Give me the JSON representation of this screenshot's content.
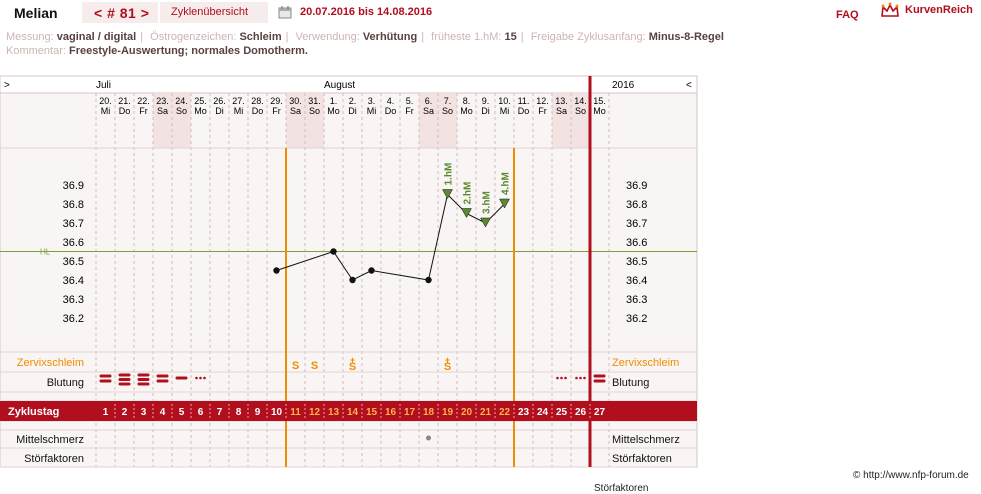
{
  "header": {
    "name": "Melian",
    "nav": "< # 81 >",
    "tab": "Zyklenübersicht",
    "date_range": "20.07.2016 bis 14.08.2016",
    "faq": "FAQ",
    "brand": "KurvenReich"
  },
  "meta": {
    "messung_label": "Messung:",
    "messung_value": "vaginal / digital",
    "oestrogen_label": "Östrogenzeichen:",
    "oestrogen_value": "Schleim",
    "verwendung_label": "Verwendung:",
    "verwendung_value": "Verhütung",
    "hm_label": "früheste 1.hM:",
    "hm_value": "15",
    "freigabe_label": "Freigabe Zyklusanfang:",
    "freigabe_value": "Minus-8-Regel",
    "kommentar_label": "Kommentar:",
    "kommentar_value": "Freestyle-Auswertung; normales Domotherm."
  },
  "chart_data": {
    "type": "line",
    "month_labels": {
      "july": "Juli",
      "august": "August",
      "year": "2016"
    },
    "nav_left": ">",
    "nav_right": "<",
    "dates": [
      "20.",
      "21.",
      "22.",
      "23.",
      "24.",
      "25.",
      "26.",
      "27.",
      "28.",
      "29.",
      "30.",
      "31.",
      "1.",
      "2.",
      "3.",
      "4.",
      "5.",
      "6.",
      "7.",
      "8.",
      "9.",
      "10.",
      "11.",
      "12.",
      "13.",
      "14.",
      "15."
    ],
    "weekdays": [
      "Mi",
      "Do",
      "Fr",
      "Sa",
      "So",
      "Mo",
      "Di",
      "Mi",
      "Do",
      "Fr",
      "Sa",
      "So",
      "Mo",
      "Di",
      "Mi",
      "Do",
      "Fr",
      "Sa",
      "So",
      "Mo",
      "Di",
      "Mi",
      "Do",
      "Fr",
      "Sa",
      "So",
      "Mo"
    ],
    "cycle_days": [
      1,
      2,
      3,
      4,
      5,
      6,
      7,
      8,
      9,
      10,
      11,
      12,
      13,
      14,
      15,
      16,
      17,
      18,
      19,
      20,
      21,
      22,
      23,
      24,
      25,
      26,
      27
    ],
    "y_ticks": [
      "36.9",
      "36.8",
      "36.7",
      "36.6",
      "36.5",
      "36.4",
      "36.3",
      "36.2"
    ],
    "ylim": [
      36.1,
      37.05
    ],
    "hl_label": "HL",
    "hl_value": 36.55,
    "temperatures": [
      {
        "day": 10,
        "value": 36.45
      },
      {
        "day": 13,
        "value": 36.55
      },
      {
        "day": 14,
        "value": 36.4
      },
      {
        "day": 15,
        "value": 36.45
      },
      {
        "day": 18,
        "value": 36.4
      },
      {
        "day": 19,
        "value": 36.85
      },
      {
        "day": 20,
        "value": 36.75
      },
      {
        "day": 21,
        "value": 36.7
      },
      {
        "day": 22,
        "value": 36.8
      }
    ],
    "hm_labels": [
      {
        "day": 19,
        "text": "1.hM"
      },
      {
        "day": 20,
        "text": "2.hM"
      },
      {
        "day": 21,
        "text": "3.hM"
      },
      {
        "day": 22,
        "text": "4.hM"
      }
    ],
    "orange_lines": [
      10,
      22
    ],
    "red_line_after": 26,
    "zervix_label": "Zervixschleim",
    "zervix": [
      {
        "day": 11,
        "text": "S"
      },
      {
        "day": 12,
        "text": "S"
      },
      {
        "day": 14,
        "text": "S+"
      },
      {
        "day": 19,
        "text": "S+"
      }
    ],
    "blutung_label": "Blutung",
    "blutung": [
      {
        "day": 1,
        "level": 2
      },
      {
        "day": 2,
        "level": 3
      },
      {
        "day": 3,
        "level": 3
      },
      {
        "day": 4,
        "level": 2
      },
      {
        "day": 5,
        "level": 1
      },
      {
        "day": 6,
        "level": 0
      },
      {
        "day": 25,
        "level": 0
      },
      {
        "day": 26,
        "level": 0
      },
      {
        "day": 27,
        "level": 2
      }
    ],
    "zyklustag_label": "Zyklustag",
    "mittelschmerz_label": "Mittelschmerz",
    "mittelschmerz": [
      18
    ],
    "stoerfaktoren_label": "Störfaktoren"
  },
  "footer": {
    "copyright": "© http://www.nfp-forum.de",
    "cutoff_text": "Störfaktoren"
  },
  "colors": {
    "accent": "#b10e1e",
    "orange": "#f08c00",
    "grid": "#c8a8a8",
    "weekend_bg": "#f3e2e2",
    "chart_bg": "#faf5f5",
    "hl": "#7aa23a",
    "hm": "#5b8a2e"
  }
}
